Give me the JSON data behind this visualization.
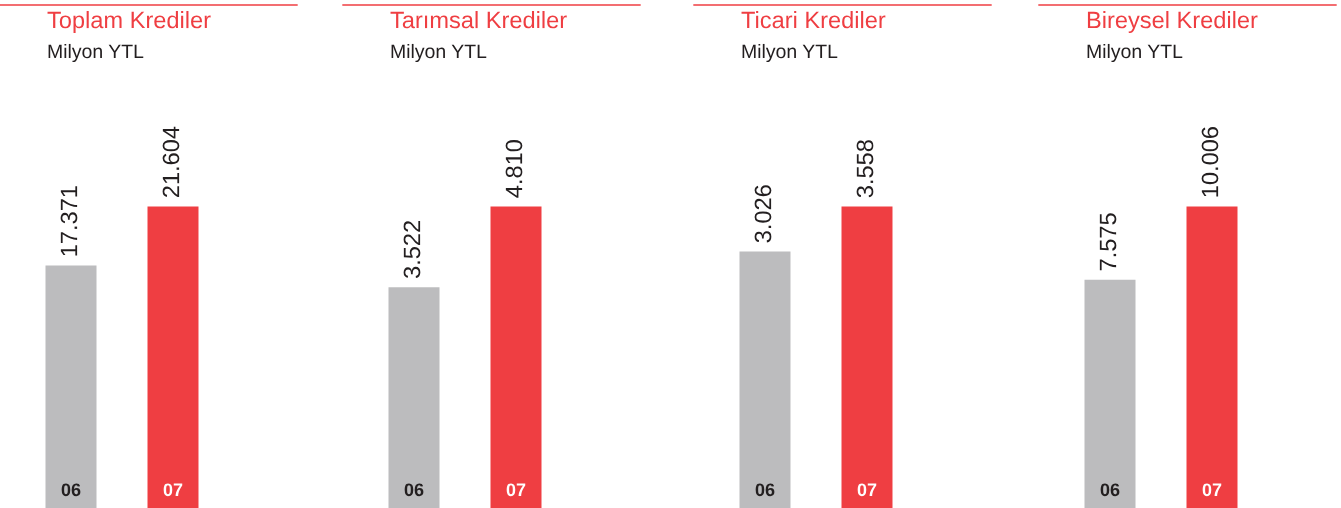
{
  "chart_data": [
    {
      "type": "bar",
      "title": "Toplam Krediler",
      "subtitle": "Milyon YTL",
      "categories": [
        "06",
        "07"
      ],
      "values": [
        17371,
        21604
      ],
      "value_labels": [
        "17.371",
        "21.604"
      ],
      "colors": [
        "#bcbcbe",
        "#ef3e42"
      ]
    },
    {
      "type": "bar",
      "title": "Tarımsal Krediler",
      "subtitle": "Milyon YTL",
      "categories": [
        "06",
        "07"
      ],
      "values": [
        3522,
        4810
      ],
      "value_labels": [
        "3.522",
        "4.810"
      ],
      "colors": [
        "#bcbcbe",
        "#ef3e42"
      ]
    },
    {
      "type": "bar",
      "title": "Ticari Krediler",
      "subtitle": "Milyon YTL",
      "categories": [
        "06",
        "07"
      ],
      "values": [
        3026,
        3558
      ],
      "value_labels": [
        "3.026",
        "3.558"
      ],
      "colors": [
        "#bcbcbe",
        "#ef3e42"
      ]
    },
    {
      "type": "bar",
      "title": "Bireysel Krediler",
      "subtitle": "Milyon YTL",
      "categories": [
        "06",
        "07"
      ],
      "values": [
        7575,
        10006
      ],
      "value_labels": [
        "7.575",
        "10.006"
      ],
      "colors": [
        "#bcbcbe",
        "#ef3e42"
      ]
    }
  ]
}
